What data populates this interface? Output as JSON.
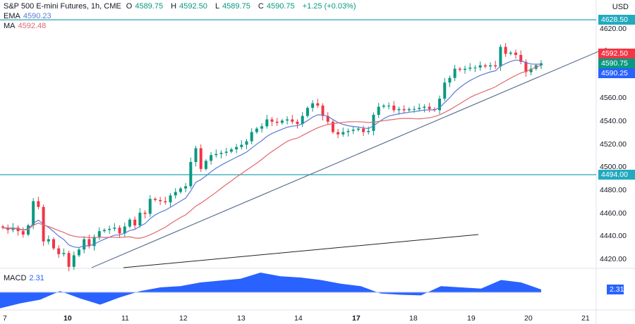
{
  "header": {
    "title": "S&P 500 E-mini Futures, 1h, CME",
    "open_label": "O",
    "open": "4589.75",
    "high_label": "H",
    "high": "4592.50",
    "low_label": "L",
    "low": "4589.75",
    "close_label": "C",
    "close": "4590.75",
    "change": "+1.25 (+0.03%)"
  },
  "ema": {
    "label": "EMA",
    "value": "4590.23"
  },
  "ma": {
    "label": "MA",
    "value": "4592.48"
  },
  "macd": {
    "label": "MACD",
    "value": "2.31"
  },
  "currency": "USD",
  "colors": {
    "up": "#089981",
    "down": "#f23645",
    "ema": "#5b7bd5",
    "ma": "#e0686c",
    "macd": "#2962ff",
    "level": "#26a5b5",
    "trend": "#5d7391"
  },
  "price_tags": [
    {
      "value": "4628.50",
      "color": "#22aabf"
    },
    {
      "value": "4592.50",
      "color": "#f23645"
    },
    {
      "value": "4590.75",
      "color": "#089981"
    },
    {
      "value": "4590.25",
      "color": "#2962ff"
    },
    {
      "value": "4494.00",
      "color": "#22aabf"
    }
  ],
  "chart_data": {
    "type": "candlestick",
    "title": "S&P 500 E-mini Futures, 1h, CME",
    "price_ticks": [
      "4620.00",
      "4600.00",
      "4580.00",
      "4560.00",
      "4540.00",
      "4520.00",
      "4500.00",
      "4480.00",
      "4460.00",
      "4440.00",
      "4420.00"
    ],
    "ylim": [
      4410,
      4640
    ],
    "x_ticks": [
      "7",
      "10",
      "11",
      "12",
      "13",
      "14",
      "17",
      "18",
      "19",
      "20",
      "21"
    ],
    "horizontal_levels": [
      4628.5,
      4494.0
    ],
    "closes": [
      4448,
      4446,
      4448,
      4445,
      4442,
      4450,
      4471,
      4466,
      4436,
      4438,
      4430,
      4425,
      4426,
      4414,
      4424,
      4429,
      4438,
      4432,
      4440,
      4445,
      4446,
      4447,
      4448,
      4443,
      4449,
      4455,
      4450,
      4461,
      4460,
      4473,
      4472,
      4471,
      4470,
      4476,
      4479,
      4482,
      4484,
      4505,
      4517,
      4499,
      4506,
      4511,
      4512,
      4513,
      4514,
      4516,
      4518,
      4520,
      4523,
      4531,
      4534,
      4536,
      4542,
      4540,
      4539,
      4541,
      4542,
      4540,
      4538,
      4545,
      4552,
      4556,
      4554,
      4545,
      4540,
      4531,
      4529,
      4531,
      4532,
      4533,
      4534,
      4531,
      4532,
      4546,
      4553,
      4554,
      4554,
      4550,
      4551,
      4550,
      4551,
      4551,
      4552,
      4553,
      4551,
      4550,
      4560,
      4574,
      4578,
      4586,
      4585,
      4586,
      4587,
      4587,
      4589,
      4588,
      4589,
      4588,
      4605,
      4599,
      4600,
      4598,
      4592,
      4583,
      4586,
      4589,
      4590.75
    ],
    "macd_values": [
      -13,
      -9,
      -6,
      1,
      -5,
      -10,
      -4,
      1,
      4,
      5,
      8,
      9.5,
      11,
      16,
      13,
      12,
      10,
      7,
      5,
      -1,
      -2,
      -2.5,
      5,
      4,
      3,
      10,
      8,
      2.31
    ]
  }
}
